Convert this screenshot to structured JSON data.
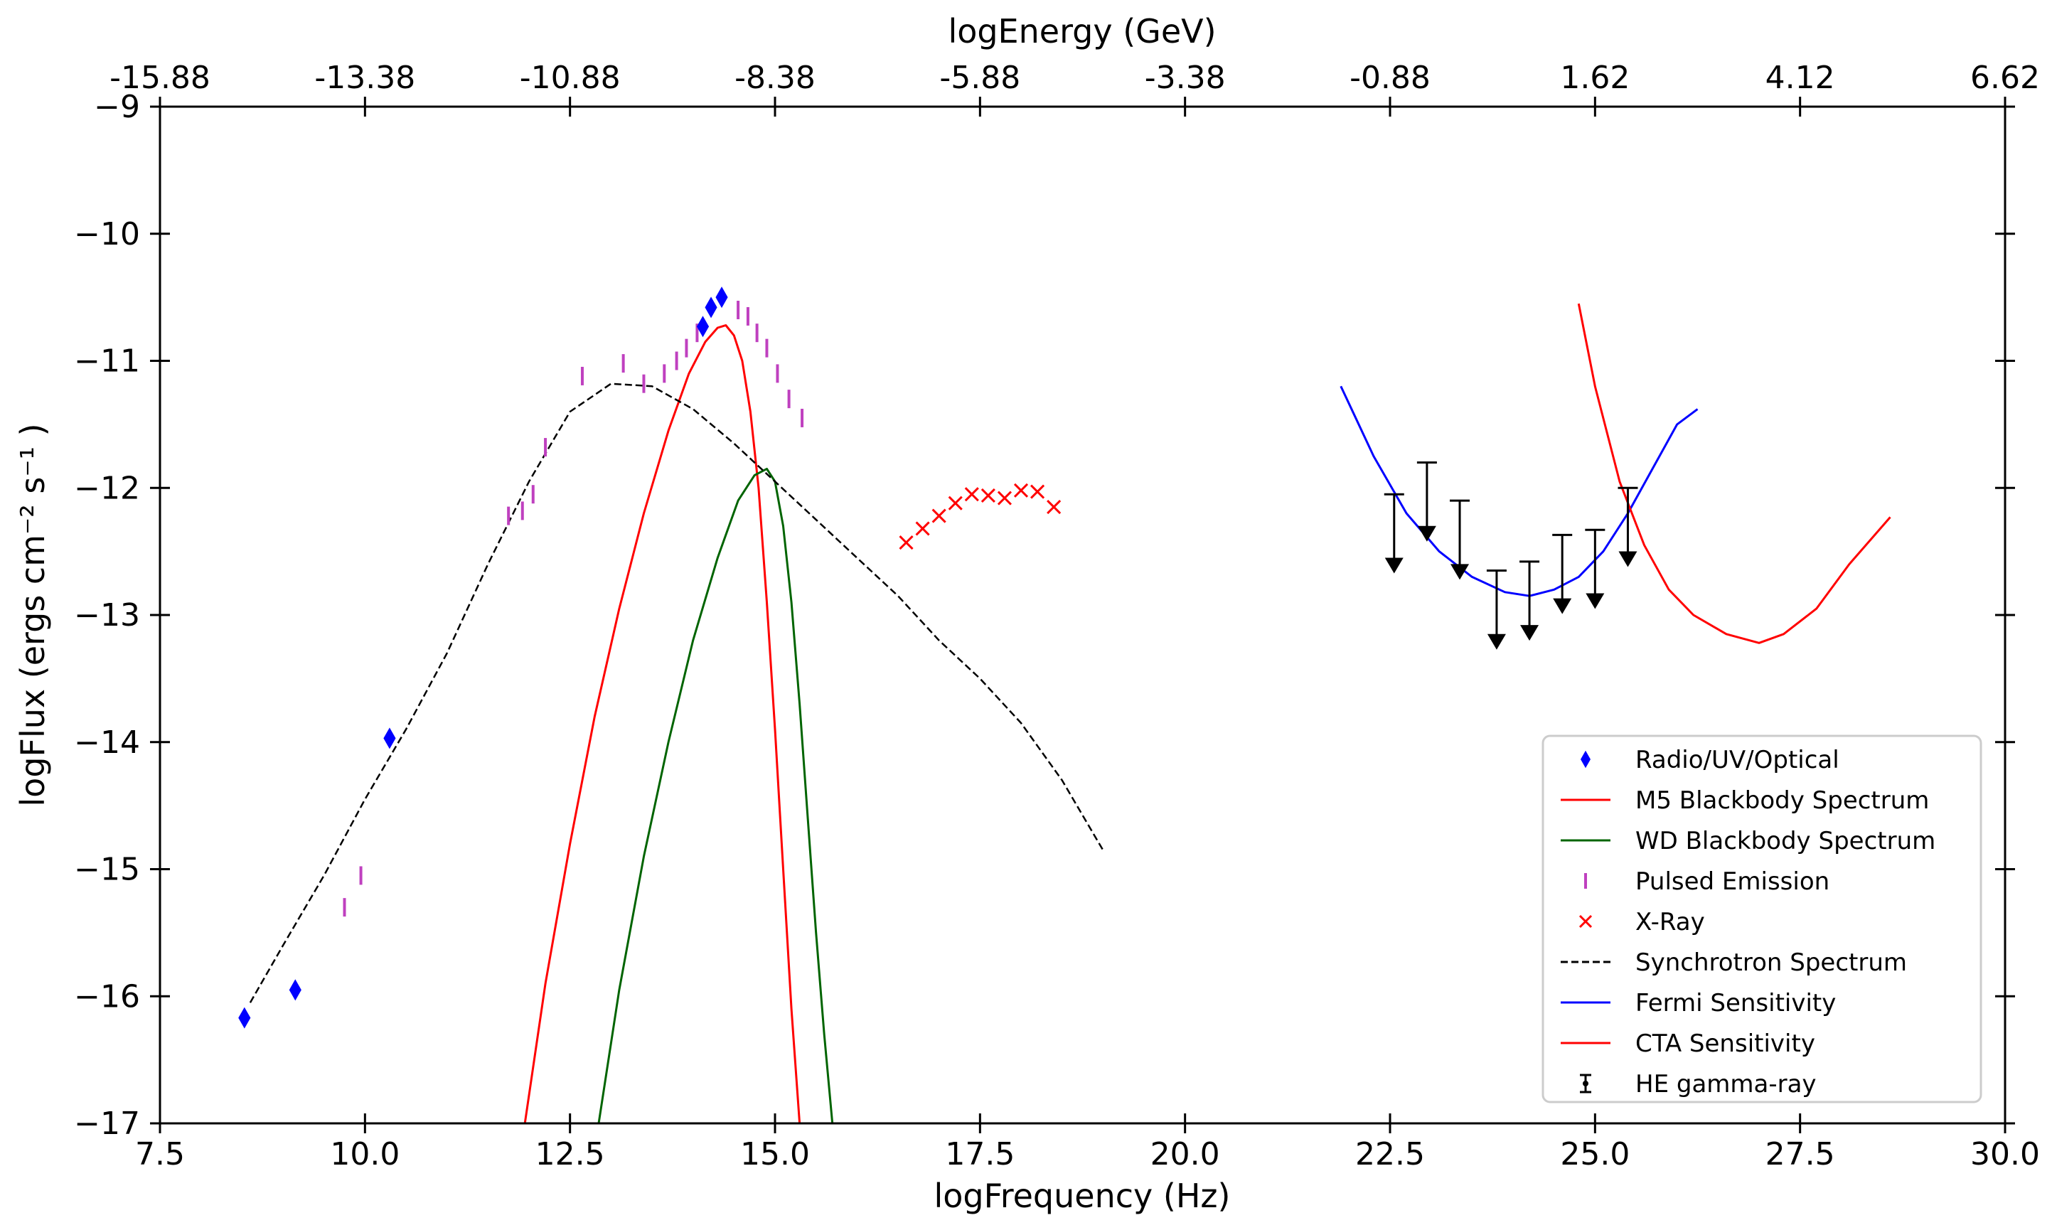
{
  "chart_data": {
    "type": "scatter",
    "title": "",
    "xlabel": "logFrequency (Hz)",
    "ylabel": "logFlux (ergs cm⁻² s⁻¹ )",
    "x2label": "logEnergy (GeV)",
    "xlim": [
      7.5,
      30.0
    ],
    "ylim": [
      -17,
      -9
    ],
    "x_ticks": [
      "7.5",
      "10.0",
      "12.5",
      "15.0",
      "17.5",
      "20.0",
      "22.5",
      "25.0",
      "27.5",
      "30.0"
    ],
    "y_ticks": [
      "−9",
      "−10",
      "−11",
      "−12",
      "−13",
      "−14",
      "−15",
      "−16",
      "−17"
    ],
    "x2_ticks": [
      "-15.88",
      "-13.38",
      "-10.88",
      "-8.38",
      "-5.88",
      "-3.38",
      "-0.88",
      "1.62",
      "4.12",
      "6.62"
    ],
    "legend_position": "lower-right",
    "colors": {
      "radio": "#0000ff",
      "m5": "#ff0000",
      "wd": "#006400",
      "pulsed": "#bf40bf",
      "xray": "#ff0000",
      "sync": "#000000",
      "fermi": "#0000ff",
      "cta": "#ff0000",
      "he": "#000000"
    },
    "series": [
      {
        "name": "Radio/UV/Optical",
        "kind": "diamond",
        "x": [
          8.53,
          9.15,
          10.3,
          14.12,
          14.22,
          14.35
        ],
        "y": [
          -16.17,
          -15.95,
          -13.97,
          -10.73,
          -10.58,
          -10.5
        ]
      },
      {
        "name": "M5 Blackbody Spectrum",
        "kind": "line",
        "x": [
          11.95,
          12.2,
          12.5,
          12.8,
          13.1,
          13.4,
          13.7,
          13.95,
          14.15,
          14.3,
          14.4,
          14.5,
          14.6,
          14.7,
          14.8,
          14.9,
          15.0,
          15.1,
          15.2,
          15.3
        ],
        "y": [
          -17.0,
          -15.9,
          -14.8,
          -13.8,
          -12.95,
          -12.2,
          -11.55,
          -11.1,
          -10.85,
          -10.74,
          -10.72,
          -10.8,
          -11.0,
          -11.4,
          -12.0,
          -12.9,
          -13.9,
          -15.0,
          -16.1,
          -17.0
        ]
      },
      {
        "name": "WD Blackbody Spectrum",
        "kind": "line",
        "x": [
          12.85,
          13.1,
          13.4,
          13.7,
          14.0,
          14.3,
          14.55,
          14.75,
          14.9,
          15.0,
          15.1,
          15.2,
          15.3,
          15.4,
          15.5,
          15.6,
          15.7
        ],
        "y": [
          -17.0,
          -15.95,
          -14.9,
          -14.0,
          -13.2,
          -12.55,
          -12.1,
          -11.9,
          -11.85,
          -11.95,
          -12.3,
          -12.9,
          -13.7,
          -14.6,
          -15.5,
          -16.3,
          -17.0
        ]
      },
      {
        "name": "Pulsed Emission",
        "kind": "tick",
        "x": [
          9.75,
          9.95,
          11.75,
          11.92,
          12.05,
          12.2,
          12.65,
          13.15,
          13.4,
          13.65,
          13.8,
          13.92,
          14.05,
          14.55,
          14.67,
          14.78,
          14.9,
          15.03,
          15.17,
          15.33
        ],
        "y": [
          -15.3,
          -15.05,
          -12.22,
          -12.18,
          -12.05,
          -11.68,
          -11.12,
          -11.02,
          -11.18,
          -11.1,
          -11.0,
          -10.9,
          -10.78,
          -10.6,
          -10.65,
          -10.78,
          -10.9,
          -11.1,
          -11.3,
          -11.45
        ]
      },
      {
        "name": "X-Ray",
        "kind": "x",
        "x": [
          16.6,
          16.8,
          17.0,
          17.2,
          17.4,
          17.6,
          17.8,
          18.0,
          18.2,
          18.4
        ],
        "y": [
          -12.43,
          -12.32,
          -12.22,
          -12.12,
          -12.05,
          -12.06,
          -12.08,
          -12.02,
          -12.03,
          -12.15
        ]
      },
      {
        "name": "Synchrotron Spectrum",
        "kind": "dashed",
        "x": [
          8.6,
          9.0,
          9.5,
          10.0,
          10.5,
          11.0,
          11.5,
          12.0,
          12.5,
          13.0,
          13.5,
          14.0,
          14.5,
          15.0,
          15.5,
          16.0,
          16.5,
          17.0,
          17.5,
          18.0,
          18.5,
          19.0
        ],
        "y": [
          -16.05,
          -15.6,
          -15.05,
          -14.45,
          -13.9,
          -13.3,
          -12.6,
          -11.95,
          -11.4,
          -11.18,
          -11.2,
          -11.38,
          -11.65,
          -11.95,
          -12.25,
          -12.55,
          -12.85,
          -13.2,
          -13.5,
          -13.85,
          -14.3,
          -14.85
        ]
      },
      {
        "name": "Fermi Sensitivity",
        "kind": "line",
        "x": [
          21.9,
          22.3,
          22.7,
          23.1,
          23.5,
          23.9,
          24.2,
          24.5,
          24.8,
          25.1,
          25.4,
          25.7,
          26.0,
          26.25
        ],
        "y": [
          -11.2,
          -11.75,
          -12.2,
          -12.5,
          -12.7,
          -12.82,
          -12.85,
          -12.8,
          -12.7,
          -12.5,
          -12.2,
          -11.85,
          -11.5,
          -11.38
        ]
      },
      {
        "name": "CTA Sensitivity",
        "kind": "line",
        "x": [
          24.8,
          25.0,
          25.3,
          25.6,
          25.9,
          26.2,
          26.6,
          27.0,
          27.3,
          27.7,
          28.1,
          28.6
        ],
        "y": [
          -10.55,
          -11.2,
          -11.95,
          -12.45,
          -12.8,
          -13.0,
          -13.15,
          -13.22,
          -13.15,
          -12.95,
          -12.6,
          -12.23
        ]
      },
      {
        "name": "HE gamma-ray",
        "kind": "upperlimit",
        "x": [
          22.55,
          22.95,
          23.35,
          23.8,
          24.2,
          24.6,
          25.0,
          25.4
        ],
        "y": [
          -12.05,
          -11.8,
          -12.1,
          -12.65,
          -12.58,
          -12.37,
          -12.33,
          -12.0
        ],
        "y_arrow_end": [
          -12.65,
          -12.4,
          -12.7,
          -13.25,
          -13.18,
          -12.97,
          -12.93,
          -12.6
        ]
      }
    ]
  }
}
